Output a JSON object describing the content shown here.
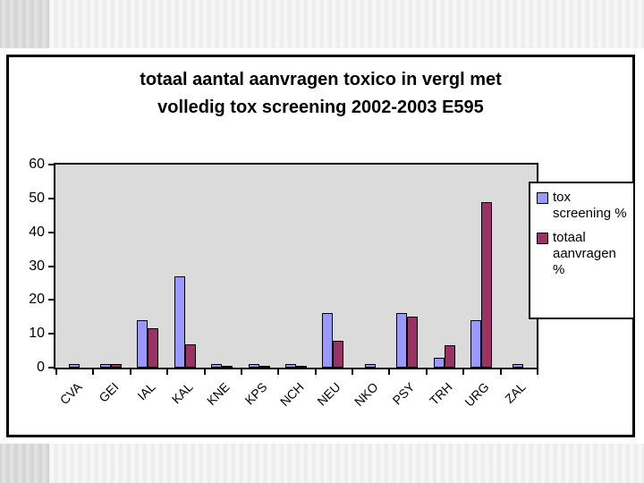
{
  "slide": {
    "title_line1": "totaal aantal aanvragen toxico in vergl met",
    "title_line2": "volledig tox screening 2002-2003 E595"
  },
  "chart_data": {
    "type": "bar",
    "title": "totaal aantal aanvragen toxico in vergl met volledig tox screening 2002-2003 E595",
    "categories": [
      "CVA",
      "GEI",
      "IAL",
      "KAL",
      "KNE",
      "KPS",
      "NCH",
      "NEU",
      "NKO",
      "PSY",
      "TRH",
      "URG",
      "ZAL"
    ],
    "series": [
      {
        "name": "tox screening %",
        "color": "#9999FF",
        "values": [
          1,
          1,
          14,
          27,
          1,
          1,
          1,
          16,
          1,
          16,
          3,
          14,
          1
        ]
      },
      {
        "name": "totaal aanvragen %",
        "color": "#993366",
        "values": [
          0,
          1,
          11.5,
          7,
          0.3,
          0.5,
          0.3,
          8,
          0,
          15,
          6.5,
          49,
          0
        ]
      }
    ],
    "ylim": [
      0,
      60
    ],
    "yticks": [
      0,
      10,
      20,
      30,
      40,
      50,
      60
    ],
    "xlabel": "",
    "ylabel": "",
    "grid": false,
    "legend_position": "right",
    "plot_bg": "#DBDBDB"
  }
}
